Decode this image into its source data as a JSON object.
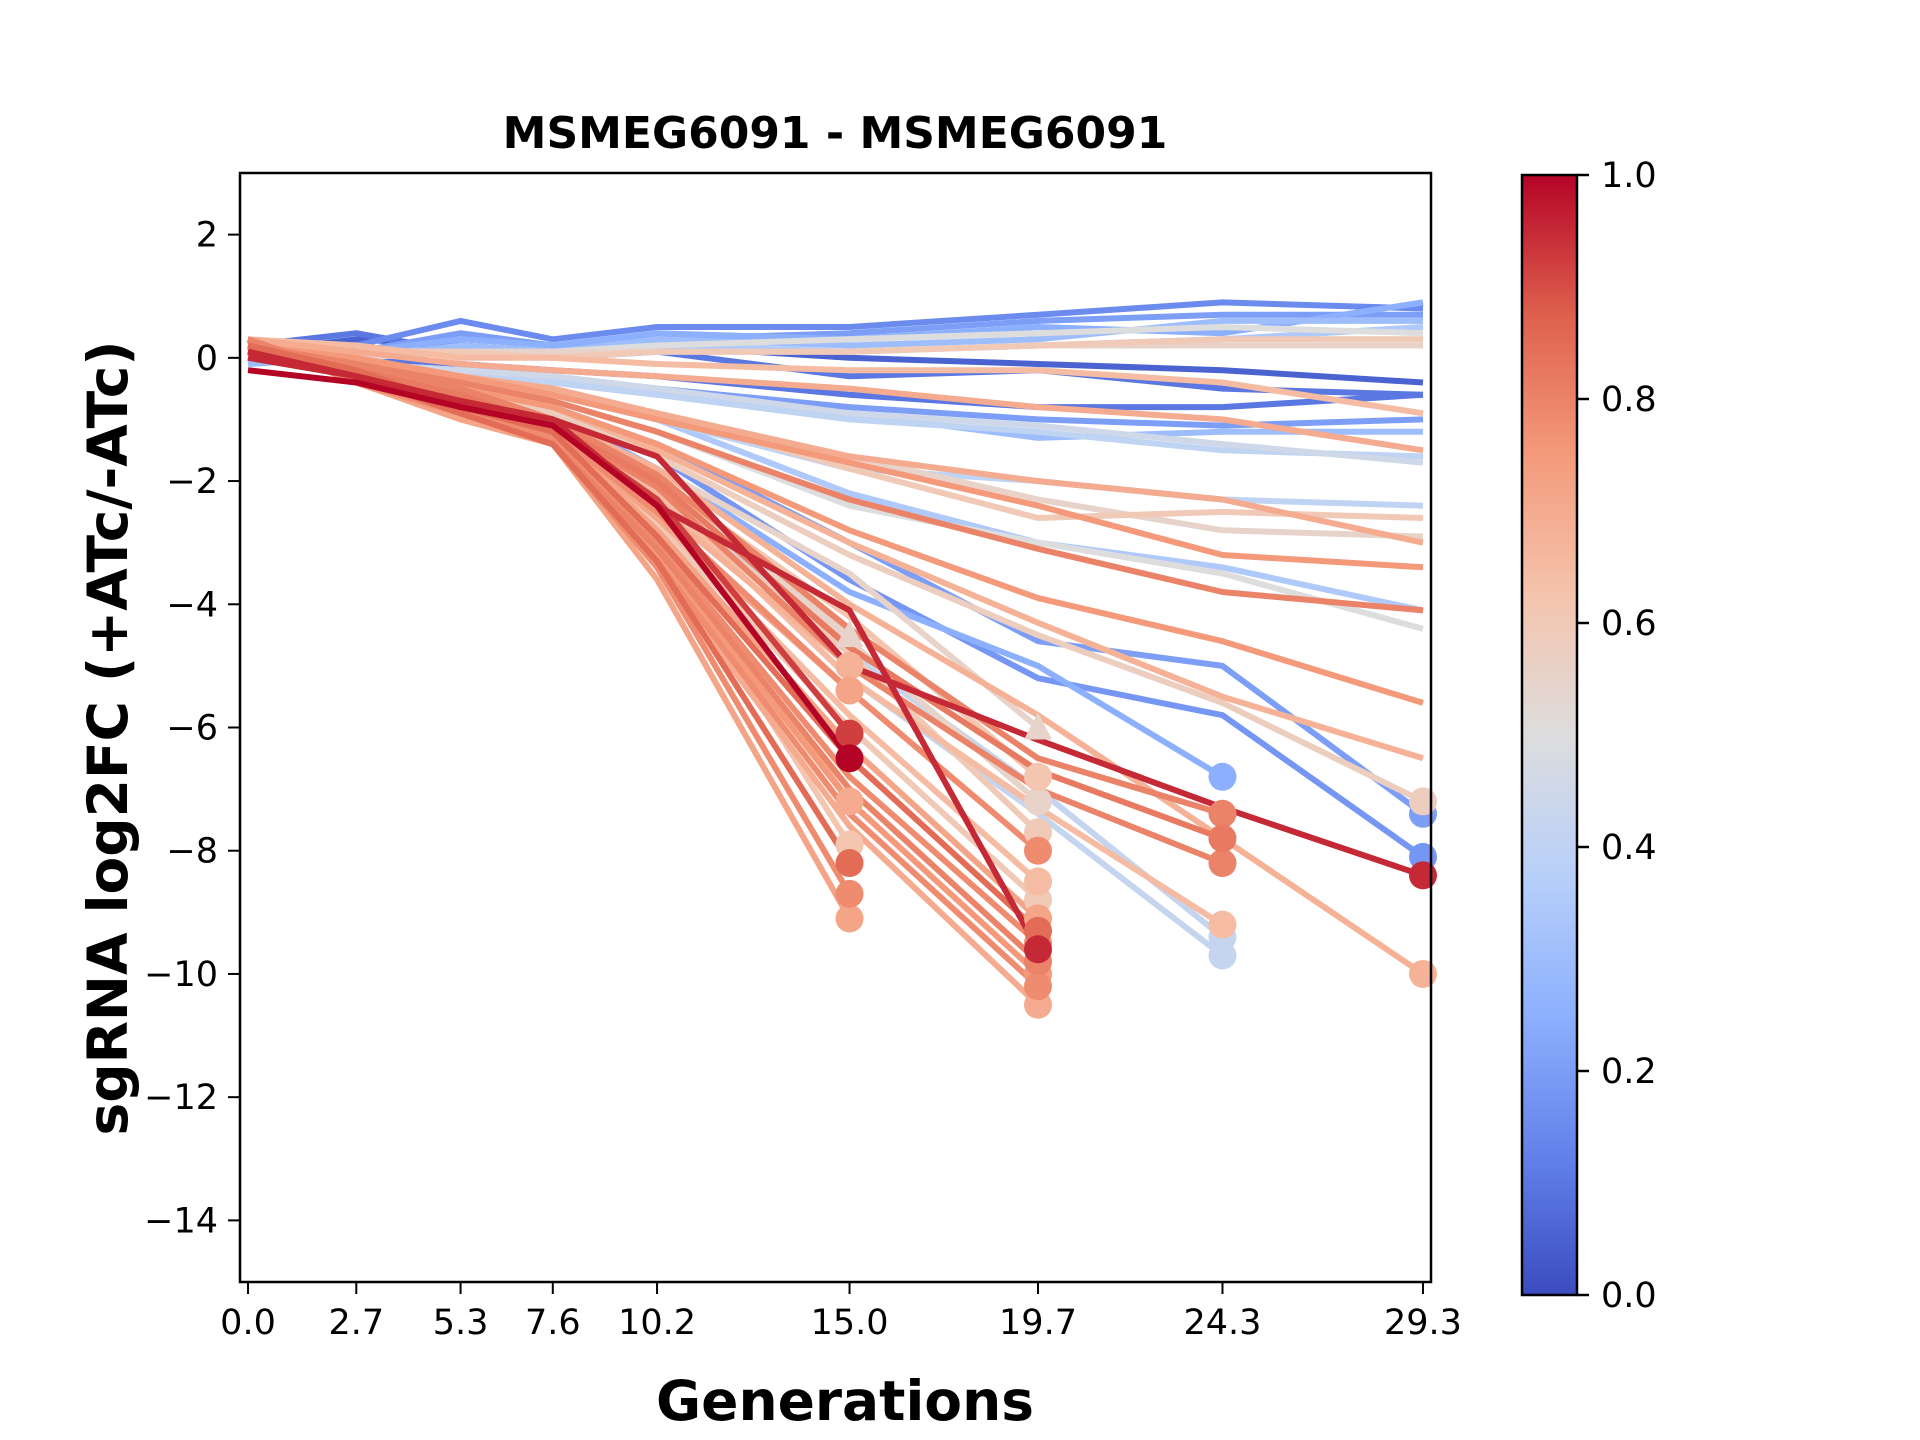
{
  "chart_data": {
    "type": "line",
    "title": "MSMEG6091 - MSMEG6091",
    "xlabel": "Generations",
    "ylabel": "sgRNA log2FC (+ATc/-ATc)",
    "x": [
      0.0,
      2.7,
      5.3,
      7.6,
      10.2,
      15.0,
      19.7,
      24.3,
      29.3
    ],
    "xtick_labels": [
      "0.0",
      "2.7",
      "5.3",
      "7.6",
      "10.2",
      "15.0",
      "19.7",
      "24.3",
      "29.3"
    ],
    "xlim": [
      -0.2,
      29.5
    ],
    "ylim": [
      -15,
      3
    ],
    "yticks": [
      2,
      0,
      -2,
      -4,
      -6,
      -8,
      -10,
      -12,
      -14
    ],
    "ytick_labels": [
      "2",
      "0",
      "−2",
      "−4",
      "−6",
      "−8",
      "−10",
      "−12",
      "−14"
    ],
    "grid": false,
    "colorbar": {
      "colormap": "coolwarm",
      "range": [
        0.0,
        1.0
      ],
      "ticks": [
        0.0,
        0.2,
        0.4,
        0.6,
        0.8,
        1.0
      ],
      "tick_labels": [
        "0.0",
        "0.2",
        "0.4",
        "0.6",
        "0.8",
        "1.0"
      ],
      "placement": "right"
    },
    "series_note": "Each series is one sgRNA; c = colorbar value; marker shown at final point when series ends early or drops out",
    "series": [
      {
        "c": 0.05,
        "values": [
          0.1,
          0.3,
          0.2,
          0.1,
          0.2,
          0.0,
          -0.1,
          -0.2,
          -0.4
        ]
      },
      {
        "c": 0.1,
        "values": [
          0.2,
          0.4,
          0.1,
          0.0,
          0.1,
          -0.3,
          -0.2,
          -0.5,
          -0.6
        ]
      },
      {
        "c": 0.15,
        "values": [
          0.1,
          0.2,
          0.6,
          0.3,
          0.5,
          0.5,
          0.7,
          0.9,
          0.8
        ]
      },
      {
        "c": 0.2,
        "values": [
          0.0,
          0.1,
          0.4,
          0.2,
          0.3,
          0.4,
          0.6,
          0.7,
          0.7
        ]
      },
      {
        "c": 0.25,
        "values": [
          0.1,
          0.1,
          0.3,
          0.2,
          0.4,
          0.3,
          0.5,
          0.4,
          0.9
        ]
      },
      {
        "c": 0.3,
        "values": [
          -0.1,
          0.0,
          0.2,
          0.1,
          0.3,
          0.2,
          0.3,
          0.6,
          0.6
        ]
      },
      {
        "c": 0.35,
        "values": [
          0.0,
          0.1,
          0.1,
          0.0,
          0.2,
          0.1,
          0.2,
          0.3,
          0.5
        ]
      },
      {
        "c": 0.1,
        "values": [
          0.1,
          0.0,
          -0.1,
          -0.2,
          -0.3,
          -0.6,
          -0.8,
          -0.8,
          -0.6
        ]
      },
      {
        "c": 0.2,
        "values": [
          0.0,
          -0.1,
          -0.2,
          -0.3,
          -0.5,
          -0.8,
          -1.0,
          -1.1,
          -1.0
        ]
      },
      {
        "c": 0.3,
        "values": [
          0.0,
          -0.1,
          -0.3,
          -0.4,
          -0.6,
          -0.9,
          -1.3,
          -1.2,
          -1.2
        ]
      },
      {
        "c": 0.4,
        "values": [
          0.0,
          -0.1,
          -0.2,
          -0.4,
          -0.6,
          -1.0,
          -1.2,
          -1.5,
          -1.6
        ]
      },
      {
        "c": 0.45,
        "values": [
          0.0,
          -0.1,
          -0.2,
          -0.3,
          -0.5,
          -0.9,
          -1.1,
          -1.4,
          -1.7
        ]
      },
      {
        "c": 0.5,
        "values": [
          0.1,
          0.0,
          0.1,
          0.1,
          0.2,
          0.3,
          0.4,
          0.5,
          0.4
        ]
      },
      {
        "c": 0.55,
        "values": [
          0.2,
          0.1,
          0.1,
          0.1,
          0.1,
          0.1,
          0.2,
          0.2,
          0.2
        ]
      },
      {
        "c": 0.6,
        "values": [
          0.3,
          0.1,
          0.1,
          0.0,
          0.1,
          0.1,
          0.2,
          0.3,
          0.3
        ]
      },
      {
        "c": 0.65,
        "values": [
          0.3,
          0.2,
          0.0,
          0.0,
          -0.1,
          -0.2,
          -0.2,
          -0.4,
          -0.9
        ]
      },
      {
        "c": 0.7,
        "values": [
          0.3,
          0.1,
          -0.1,
          -0.2,
          -0.3,
          -0.5,
          -0.8,
          -1.0,
          -1.5
        ]
      },
      {
        "c": 0.35,
        "values": [
          0.0,
          -0.1,
          -0.3,
          -0.6,
          -1.0,
          -2.2,
          -3.0,
          -3.4,
          -4.1
        ]
      },
      {
        "c": 0.4,
        "values": [
          0.0,
          -0.2,
          -0.4,
          -0.6,
          -1.0,
          -1.8,
          -2.0,
          -2.3,
          -2.4
        ]
      },
      {
        "c": 0.5,
        "values": [
          0.0,
          -0.2,
          -0.4,
          -0.7,
          -1.2,
          -2.4,
          -3.0,
          -3.5,
          -4.4
        ]
      },
      {
        "c": 0.55,
        "values": [
          0.1,
          -0.1,
          -0.3,
          -0.5,
          -0.9,
          -1.6,
          -2.3,
          -2.8,
          -2.9
        ]
      },
      {
        "c": 0.6,
        "values": [
          0.1,
          -0.1,
          -0.3,
          -0.5,
          -0.9,
          -1.8,
          -2.6,
          -2.5,
          -2.6
        ]
      },
      {
        "c": 0.75,
        "values": [
          0.2,
          0.0,
          -0.3,
          -0.6,
          -1.0,
          -1.7,
          -2.4,
          -3.2,
          -3.4
        ]
      },
      {
        "c": 0.7,
        "values": [
          0.2,
          0.0,
          -0.3,
          -0.5,
          -0.9,
          -1.6,
          -2.0,
          -2.3,
          -3.0
        ]
      },
      {
        "c": 0.8,
        "values": [
          0.2,
          -0.1,
          -0.4,
          -0.7,
          -1.2,
          -2.3,
          -3.1,
          -3.8,
          -4.1
        ]
      },
      {
        "c": 0.75,
        "values": [
          0.2,
          -0.1,
          -0.5,
          -0.8,
          -1.4,
          -2.8,
          -3.9,
          -4.6,
          -5.6
        ]
      },
      {
        "c": 0.68,
        "values": [
          0.2,
          -0.1,
          -0.5,
          -0.8,
          -1.5,
          -3.0,
          -4.3,
          -5.5,
          -6.5
        ]
      },
      {
        "c": 0.58,
        "values": [
          0.1,
          -0.2,
          -0.5,
          -0.9,
          -1.6,
          -3.2,
          -4.5,
          -5.6,
          -7.2
        ],
        "marker": "o"
      },
      {
        "c": 0.2,
        "values": [
          0.0,
          -0.2,
          -0.5,
          -0.8,
          -1.4,
          -3.0,
          -4.6,
          -5.0,
          -7.4
        ],
        "marker": "o"
      },
      {
        "c": 0.18,
        "values": [
          0.0,
          -0.2,
          -0.5,
          -0.9,
          -1.6,
          -3.6,
          -5.2,
          -5.8,
          -8.1
        ],
        "marker": "o"
      },
      {
        "c": 0.95,
        "values": [
          0.0,
          -0.3,
          -0.7,
          -1.0,
          -1.6,
          -5.0,
          -6.2,
          -7.3,
          -8.4
        ],
        "marker": "o"
      },
      {
        "c": 0.68,
        "values": [
          0.1,
          -0.2,
          -0.6,
          -1.0,
          -1.8,
          -4.0,
          -5.8,
          -7.8,
          -10.0
        ],
        "marker": "o"
      },
      {
        "c": 0.25,
        "values": [
          0.0,
          -0.2,
          -0.5,
          -0.9,
          -1.8,
          -3.8,
          -5.0,
          -6.8
        ],
        "marker": "o"
      },
      {
        "c": 0.8,
        "values": [
          0.2,
          -0.1,
          -0.5,
          -1.0,
          -1.9,
          -4.4,
          -6.5,
          -7.4
        ],
        "marker": "o"
      },
      {
        "c": 0.82,
        "values": [
          0.2,
          -0.2,
          -0.6,
          -1.1,
          -2.0,
          -4.7,
          -6.7,
          -7.8
        ],
        "marker": "o"
      },
      {
        "c": 0.8,
        "values": [
          0.1,
          -0.2,
          -0.6,
          -1.1,
          -2.1,
          -5.0,
          -7.0,
          -8.2
        ],
        "marker": "o"
      },
      {
        "c": 0.65,
        "values": [
          0.1,
          -0.2,
          -0.6,
          -1.1,
          -2.2,
          -5.2,
          -7.3,
          -9.2
        ],
        "marker": "o"
      },
      {
        "c": 0.42,
        "values": [
          0.0,
          -0.2,
          -0.6,
          -1.0,
          -2.0,
          -4.8,
          -7.0,
          -9.4
        ],
        "marker": "o"
      },
      {
        "c": 0.42,
        "values": [
          0.0,
          -0.2,
          -0.6,
          -1.0,
          -2.2,
          -5.2,
          -7.4,
          -9.7
        ],
        "marker": "o"
      },
      {
        "c": 0.55,
        "values": [
          0.1,
          -0.2,
          -0.6,
          -1.0,
          -1.8,
          -3.5,
          -6.0
        ],
        "marker": "^"
      },
      {
        "c": 0.62,
        "values": [
          0.1,
          -0.2,
          -0.7,
          -1.1,
          -2.0,
          -4.2,
          -6.8
        ],
        "marker": "o"
      },
      {
        "c": 0.55,
        "values": [
          0.1,
          -0.2,
          -0.7,
          -1.1,
          -2.1,
          -4.6,
          -7.2
        ],
        "marker": "o"
      },
      {
        "c": 0.6,
        "values": [
          0.1,
          -0.2,
          -0.7,
          -1.2,
          -2.2,
          -4.8,
          -7.7
        ],
        "marker": "o"
      },
      {
        "c": 0.78,
        "values": [
          0.2,
          -0.2,
          -0.8,
          -1.2,
          -2.5,
          -5.4,
          -8.0
        ],
        "marker": "o"
      },
      {
        "c": 0.65,
        "values": [
          0.2,
          -0.3,
          -0.8,
          -1.3,
          -2.6,
          -5.8,
          -8.5
        ],
        "marker": "o"
      },
      {
        "c": 0.6,
        "values": [
          0.2,
          -0.3,
          -0.8,
          -1.3,
          -2.7,
          -6.0,
          -8.8
        ],
        "marker": "o"
      },
      {
        "c": 0.72,
        "values": [
          0.3,
          -0.3,
          -0.8,
          -1.2,
          -2.8,
          -6.3,
          -9.1
        ],
        "marker": "o"
      },
      {
        "c": 0.85,
        "values": [
          0.2,
          -0.2,
          -0.8,
          -1.2,
          -2.9,
          -6.5,
          -9.3
        ],
        "marker": "o"
      },
      {
        "c": 0.78,
        "values": [
          0.3,
          -0.3,
          -0.9,
          -1.3,
          -3.0,
          -6.8,
          -9.5
        ],
        "marker": "o"
      },
      {
        "c": 0.95,
        "values": [
          0.1,
          -0.3,
          -0.7,
          -1.0,
          -2.4,
          -4.1,
          -9.6
        ],
        "marker": "o"
      },
      {
        "c": 0.8,
        "values": [
          0.3,
          -0.3,
          -0.9,
          -1.4,
          -3.1,
          -7.0,
          -9.8
        ],
        "marker": "o"
      },
      {
        "c": 0.75,
        "values": [
          0.3,
          -0.3,
          -0.9,
          -1.4,
          -3.2,
          -7.2,
          -10.0
        ],
        "marker": "o"
      },
      {
        "c": 0.78,
        "values": [
          0.3,
          -0.4,
          -0.9,
          -1.4,
          -3.3,
          -7.4,
          -10.2
        ],
        "marker": "o"
      },
      {
        "c": 0.7,
        "values": [
          0.3,
          -0.4,
          -1.0,
          -1.4,
          -3.4,
          -7.6,
          -10.5
        ],
        "marker": "o"
      },
      {
        "c": 0.55,
        "values": [
          0.1,
          -0.2,
          -0.6,
          -1.0,
          -2.0,
          -4.5
        ],
        "marker": "^"
      },
      {
        "c": 0.68,
        "values": [
          0.2,
          -0.2,
          -0.7,
          -1.1,
          -2.4,
          -5.0
        ],
        "marker": "o"
      },
      {
        "c": 0.72,
        "values": [
          0.2,
          -0.3,
          -0.8,
          -1.2,
          -2.6,
          -5.4
        ],
        "marker": "o"
      },
      {
        "c": 0.92,
        "values": [
          0.1,
          -0.3,
          -0.8,
          -1.1,
          -2.3,
          -6.1
        ],
        "marker": "o"
      },
      {
        "c": 1.0,
        "values": [
          -0.2,
          -0.4,
          -0.8,
          -1.1,
          -2.4,
          -6.5
        ],
        "marker": "o"
      },
      {
        "c": 0.7,
        "values": [
          0.3,
          -0.3,
          -0.9,
          -1.3,
          -2.9,
          -7.2
        ],
        "marker": "o"
      },
      {
        "c": 0.62,
        "values": [
          0.2,
          -0.3,
          -0.9,
          -1.3,
          -3.0,
          -7.9
        ],
        "marker": "o"
      },
      {
        "c": 0.85,
        "values": [
          0.1,
          -0.3,
          -0.9,
          -1.4,
          -3.3,
          -8.2
        ],
        "marker": "o"
      },
      {
        "c": 0.78,
        "values": [
          0.2,
          -0.3,
          -0.9,
          -1.4,
          -3.4,
          -8.7
        ],
        "marker": "o"
      },
      {
        "c": 0.72,
        "values": [
          0.3,
          -0.4,
          -1.0,
          -1.4,
          -3.6,
          -9.1
        ],
        "marker": "o"
      }
    ]
  }
}
